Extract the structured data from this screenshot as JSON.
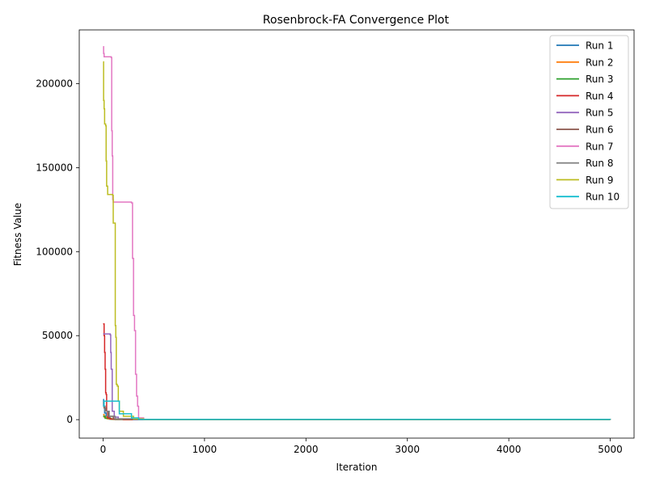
{
  "chart_data": {
    "type": "line",
    "title": "Rosenbrock-FA Convergence Plot",
    "xlabel": "Iteration",
    "ylabel": "Fitness Value",
    "xlim": [
      -235,
      5235
    ],
    "ylim": [
      -11000,
      232000
    ],
    "xticks": [
      0,
      1000,
      2000,
      3000,
      4000,
      5000
    ],
    "yticks": [
      0,
      50000,
      100000,
      150000,
      200000
    ],
    "xtick_labels": [
      "0",
      "1000",
      "2000",
      "3000",
      "4000",
      "5000"
    ],
    "ytick_labels": [
      "0",
      "50000",
      "100000",
      "150000",
      "200000"
    ],
    "grid": false,
    "legend_position": "top-right",
    "series": [
      {
        "name": "Run 1",
        "color": "#1f77b4",
        "points": [
          [
            0,
            12000
          ],
          [
            5,
            8000
          ],
          [
            15,
            4000
          ],
          [
            30,
            1500
          ],
          [
            60,
            300
          ],
          [
            120,
            50
          ],
          [
            400,
            5
          ],
          [
            5000,
            0
          ]
        ]
      },
      {
        "name": "Run 2",
        "color": "#ff7f0e",
        "points": [
          [
            0,
            3000
          ],
          [
            10,
            1500
          ],
          [
            40,
            500
          ],
          [
            100,
            100
          ],
          [
            300,
            10
          ],
          [
            5000,
            0
          ]
        ]
      },
      {
        "name": "Run 3",
        "color": "#2ca02c",
        "points": [
          [
            0,
            2000
          ],
          [
            20,
            800
          ],
          [
            80,
            200
          ],
          [
            200,
            30
          ],
          [
            5000,
            0
          ]
        ]
      },
      {
        "name": "Run 4",
        "color": "#d62728",
        "points": [
          [
            0,
            57000
          ],
          [
            10,
            50000
          ],
          [
            15,
            40000
          ],
          [
            20,
            30000
          ],
          [
            25,
            16000
          ],
          [
            30,
            15000
          ],
          [
            35,
            5000
          ],
          [
            45,
            1000
          ],
          [
            70,
            300
          ],
          [
            200,
            50
          ],
          [
            5000,
            0
          ]
        ]
      },
      {
        "name": "Run 5",
        "color": "#9467bd",
        "points": [
          [
            0,
            51000
          ],
          [
            10,
            51000
          ],
          [
            70,
            50500
          ],
          [
            75,
            40000
          ],
          [
            80,
            30000
          ],
          [
            90,
            5000
          ],
          [
            110,
            1500
          ],
          [
            150,
            500
          ],
          [
            300,
            50
          ],
          [
            5000,
            0
          ]
        ]
      },
      {
        "name": "Run 6",
        "color": "#8c564b",
        "points": [
          [
            0,
            10000
          ],
          [
            10,
            7000
          ],
          [
            30,
            5000
          ],
          [
            50,
            2000
          ],
          [
            100,
            500
          ],
          [
            300,
            50
          ],
          [
            5000,
            0
          ]
        ]
      },
      {
        "name": "Run 7",
        "color": "#e377c2",
        "points": [
          [
            0,
            222000
          ],
          [
            5,
            218000
          ],
          [
            10,
            216000
          ],
          [
            80,
            215500
          ],
          [
            85,
            172000
          ],
          [
            90,
            157000
          ],
          [
            95,
            131000
          ],
          [
            100,
            129500
          ],
          [
            280,
            129000
          ],
          [
            290,
            96000
          ],
          [
            300,
            62000
          ],
          [
            310,
            53000
          ],
          [
            320,
            27000
          ],
          [
            330,
            14000
          ],
          [
            340,
            8000
          ],
          [
            350,
            1000
          ],
          [
            400,
            100
          ],
          [
            5000,
            0
          ]
        ]
      },
      {
        "name": "Run 8",
        "color": "#7f7f7f",
        "points": [
          [
            0,
            8000
          ],
          [
            20,
            5000
          ],
          [
            60,
            2000
          ],
          [
            120,
            400
          ],
          [
            300,
            30
          ],
          [
            5000,
            0
          ]
        ]
      },
      {
        "name": "Run 9",
        "color": "#bcbd22",
        "points": [
          [
            0,
            213000
          ],
          [
            5,
            190000
          ],
          [
            10,
            185000
          ],
          [
            15,
            176000
          ],
          [
            25,
            175000
          ],
          [
            30,
            154000
          ],
          [
            35,
            139000
          ],
          [
            45,
            134000
          ],
          [
            95,
            133500
          ],
          [
            100,
            117000
          ],
          [
            115,
            117000
          ],
          [
            120,
            56000
          ],
          [
            125,
            49000
          ],
          [
            130,
            21000
          ],
          [
            140,
            20000
          ],
          [
            150,
            11000
          ],
          [
            160,
            5000
          ],
          [
            200,
            2000
          ],
          [
            300,
            500
          ],
          [
            400,
            50
          ],
          [
            5000,
            0
          ]
        ]
      },
      {
        "name": "Run 10",
        "color": "#17becf",
        "points": [
          [
            0,
            8000
          ],
          [
            10,
            11000
          ],
          [
            150,
            11000
          ],
          [
            160,
            3500
          ],
          [
            270,
            3500
          ],
          [
            280,
            1000
          ],
          [
            350,
            100
          ],
          [
            5000,
            0
          ]
        ]
      }
    ]
  }
}
